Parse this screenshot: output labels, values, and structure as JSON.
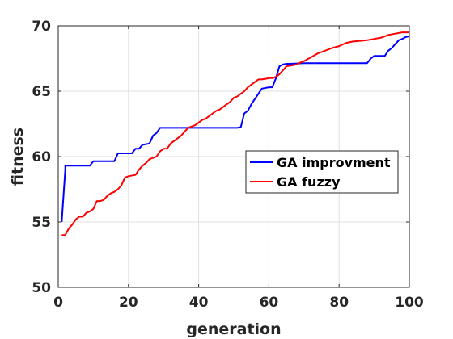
{
  "chart_data": {
    "type": "line",
    "xlabel": "generation",
    "ylabel": "fitness",
    "xlim": [
      0,
      100
    ],
    "ylim": [
      50,
      70
    ],
    "xticks": [
      0,
      20,
      40,
      60,
      80,
      100
    ],
    "yticks": [
      50,
      55,
      60,
      65,
      70
    ],
    "grid": true,
    "legend_position": "center-right",
    "series": [
      {
        "name": "GA improvment",
        "color": "#0000ff",
        "x": [
          1,
          2,
          2,
          9,
          10,
          16,
          17,
          21,
          22,
          23,
          24,
          26,
          27,
          28,
          29,
          51,
          52,
          53,
          54,
          55,
          56,
          57,
          58,
          60,
          61,
          62,
          63,
          64,
          65,
          66,
          70,
          75,
          80,
          85,
          88,
          89,
          90,
          93,
          94,
          95,
          96,
          97,
          98,
          99,
          100
        ],
        "y": [
          55.0,
          59.0,
          59.3,
          59.3,
          59.65,
          59.65,
          60.25,
          60.25,
          60.6,
          60.6,
          60.9,
          61.0,
          61.6,
          61.8,
          62.2,
          62.2,
          62.25,
          63.3,
          63.5,
          64.0,
          64.4,
          64.8,
          65.2,
          65.3,
          65.3,
          66.0,
          66.9,
          67.05,
          67.1,
          67.1,
          67.15,
          67.15,
          67.15,
          67.15,
          67.15,
          67.5,
          67.7,
          67.7,
          68.1,
          68.3,
          68.6,
          68.9,
          69.0,
          69.15,
          69.2
        ]
      },
      {
        "name": "GA fuzzy",
        "color": "#ff0000",
        "x": [
          1,
          2,
          3,
          4,
          5,
          6,
          7,
          8,
          9,
          10,
          11,
          12,
          13,
          14,
          15,
          16,
          17,
          18,
          19,
          20,
          22,
          23,
          24,
          25,
          26,
          27,
          28,
          29,
          30,
          31,
          32,
          33,
          34,
          35,
          36,
          37,
          38,
          39,
          40,
          41,
          42,
          43,
          44,
          45,
          46,
          47,
          48,
          49,
          50,
          51,
          52,
          53,
          54,
          55,
          56,
          57,
          58,
          59,
          60,
          61,
          62,
          63,
          64,
          65,
          66,
          67,
          68,
          69,
          70,
          72,
          74,
          76,
          78,
          80,
          82,
          84,
          86,
          88,
          90,
          92,
          94,
          96,
          98,
          100
        ],
        "y": [
          54.0,
          54.0,
          54.5,
          54.8,
          55.2,
          55.4,
          55.4,
          55.7,
          55.8,
          56.0,
          56.6,
          56.6,
          56.7,
          57.0,
          57.2,
          57.3,
          57.5,
          57.8,
          58.4,
          58.5,
          58.6,
          59.0,
          59.3,
          59.5,
          59.8,
          59.9,
          60.0,
          60.4,
          60.6,
          60.6,
          61.0,
          61.2,
          61.4,
          61.6,
          61.9,
          62.2,
          62.3,
          62.4,
          62.6,
          62.8,
          62.9,
          63.1,
          63.3,
          63.5,
          63.6,
          63.8,
          64.0,
          64.2,
          64.5,
          64.6,
          64.8,
          65.0,
          65.3,
          65.5,
          65.7,
          65.9,
          65.9,
          65.95,
          66.0,
          66.0,
          66.1,
          66.3,
          66.6,
          66.9,
          66.95,
          67.0,
          67.05,
          67.2,
          67.3,
          67.6,
          67.9,
          68.1,
          68.3,
          68.45,
          68.7,
          68.8,
          68.85,
          68.9,
          69.0,
          69.1,
          69.3,
          69.4,
          69.5,
          69.5
        ]
      }
    ]
  }
}
